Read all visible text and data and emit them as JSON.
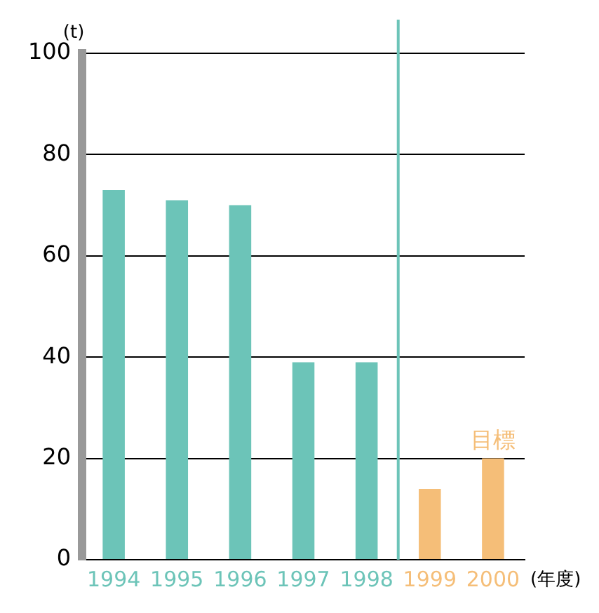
{
  "chart_data": {
    "type": "bar",
    "ylabel": "(t)",
    "xlabel": "(年度)",
    "categories": [
      "1994",
      "1995",
      "1996",
      "1997",
      "1998",
      "1999",
      "2000"
    ],
    "values": [
      73,
      71,
      70,
      39,
      39,
      14,
      20
    ],
    "colors": [
      "#6cc4b8",
      "#6cc4b8",
      "#6cc4b8",
      "#6cc4b8",
      "#6cc4b8",
      "#f5be78",
      "#f5be78"
    ],
    "ylim": [
      0,
      100
    ],
    "yticks": [
      0,
      20,
      40,
      60,
      80,
      100
    ],
    "grid": "y",
    "ref_lines": [
      {
        "axis": "x",
        "value": "1999",
        "color": "#6cc4b8"
      }
    ],
    "annotations": [
      {
        "text": "目標",
        "x": "2000",
        "y": 20
      }
    ]
  }
}
